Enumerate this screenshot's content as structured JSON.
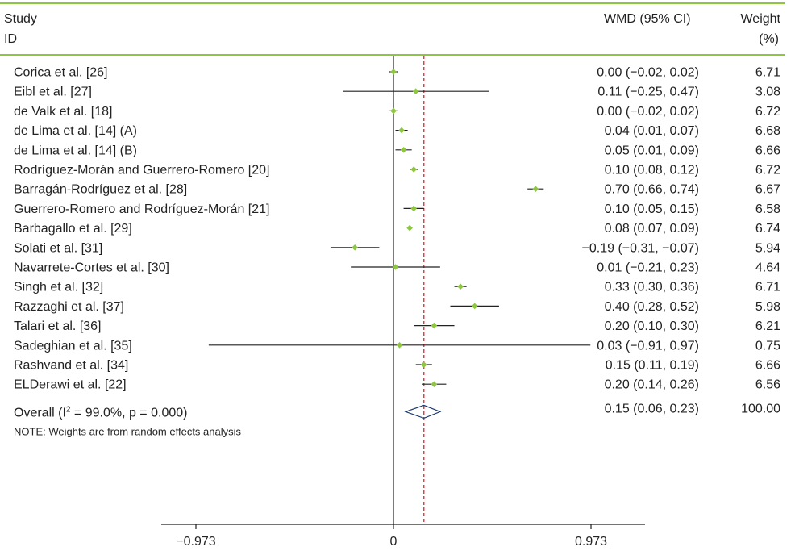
{
  "chart_data": {
    "type": "forest",
    "header": {
      "study_line1": "Study",
      "study_line2": "ID",
      "effect": "WMD (95% CI)",
      "weight_line1": "Weight",
      "weight_line2": "(%)"
    },
    "studies": [
      {
        "id": "Corica et al. [26]",
        "est": 0.0,
        "lo": -0.02,
        "hi": 0.02,
        "ci_text": "0.00 (−0.02, 0.02)",
        "weight": "6.71"
      },
      {
        "id": "Eibl et al. [27]",
        "est": 0.11,
        "lo": -0.25,
        "hi": 0.47,
        "ci_text": "0.11 (−0.25, 0.47)",
        "weight": "3.08"
      },
      {
        "id": "de Valk et al. [18]",
        "est": 0.0,
        "lo": -0.02,
        "hi": 0.02,
        "ci_text": "0.00 (−0.02, 0.02)",
        "weight": "6.72"
      },
      {
        "id": "de Lima et al. [14] (A)",
        "est": 0.04,
        "lo": 0.01,
        "hi": 0.07,
        "ci_text": "0.04 (0.01, 0.07)",
        "weight": "6.68"
      },
      {
        "id": "de Lima et al. [14] (B)",
        "est": 0.05,
        "lo": 0.01,
        "hi": 0.09,
        "ci_text": "0.05 (0.01, 0.09)",
        "weight": "6.66"
      },
      {
        "id": "Rodríguez-Morán and Guerrero-Romero [20]",
        "est": 0.1,
        "lo": 0.08,
        "hi": 0.12,
        "ci_text": "0.10 (0.08, 0.12)",
        "weight": "6.72"
      },
      {
        "id": "Barragán-Rodríguez et al. [28]",
        "est": 0.7,
        "lo": 0.66,
        "hi": 0.74,
        "ci_text": "0.70 (0.66, 0.74)",
        "weight": "6.67"
      },
      {
        "id": "Guerrero-Romero and Rodríguez-Morán [21]",
        "est": 0.1,
        "lo": 0.05,
        "hi": 0.15,
        "ci_text": "0.10 (0.05, 0.15)",
        "weight": "6.58"
      },
      {
        "id": "Barbagallo et al. [29]",
        "est": 0.08,
        "lo": 0.07,
        "hi": 0.09,
        "ci_text": "0.08 (0.07, 0.09)",
        "weight": "6.74"
      },
      {
        "id": "Solati et al. [31]",
        "est": -0.19,
        "lo": -0.31,
        "hi": -0.07,
        "ci_text": "−0.19 (−0.31, −0.07)",
        "weight": "5.94"
      },
      {
        "id": "Navarrete-Cortes et al. [30]",
        "est": 0.01,
        "lo": -0.21,
        "hi": 0.23,
        "ci_text": "0.01 (−0.21, 0.23)",
        "weight": "4.64"
      },
      {
        "id": "Singh et al. [32]",
        "est": 0.33,
        "lo": 0.3,
        "hi": 0.36,
        "ci_text": "0.33 (0.30, 0.36)",
        "weight": "6.71"
      },
      {
        "id": "Razzaghi et al. [37]",
        "est": 0.4,
        "lo": 0.28,
        "hi": 0.52,
        "ci_text": "0.40 (0.28, 0.52)",
        "weight": "5.98"
      },
      {
        "id": "Talari et al. [36]",
        "est": 0.2,
        "lo": 0.1,
        "hi": 0.3,
        "ci_text": "0.20 (0.10, 0.30)",
        "weight": "6.21"
      },
      {
        "id": "Sadeghian et al. [35]",
        "est": 0.03,
        "lo": -0.91,
        "hi": 0.97,
        "ci_text": "0.03 (−0.91, 0.97)",
        "weight": "0.75"
      },
      {
        "id": "Rashvand et al. [34]",
        "est": 0.15,
        "lo": 0.11,
        "hi": 0.19,
        "ci_text": "0.15 (0.11, 0.19)",
        "weight": "6.66"
      },
      {
        "id": "ELDerawi et al. [22]",
        "est": 0.2,
        "lo": 0.14,
        "hi": 0.26,
        "ci_text": "0.20 (0.14, 0.26)",
        "weight": "6.56"
      }
    ],
    "overall": {
      "label_pre": "Overall (I",
      "label_sup": "2",
      "label_post": " = 99.0%, p = 0.000)",
      "est": 0.15,
      "lo": 0.06,
      "hi": 0.23,
      "ci_text": "0.15 (0.06, 0.23)",
      "weight": "100.00"
    },
    "note": "NOTE: Weights are from random effects analysis",
    "x_ticks": [
      {
        "value": -0.973,
        "label": "−0.973"
      },
      {
        "value": 0,
        "label": "0"
      },
      {
        "value": 0.973,
        "label": "0.973"
      }
    ],
    "xlim": [
      -0.973,
      0.973
    ],
    "null_line": 0,
    "colors": {
      "point": "#8DC63F",
      "overall_line": "#E8202A",
      "rule": "#8DC63F",
      "diamond": "#1F3B73",
      "text": "#222222"
    }
  }
}
